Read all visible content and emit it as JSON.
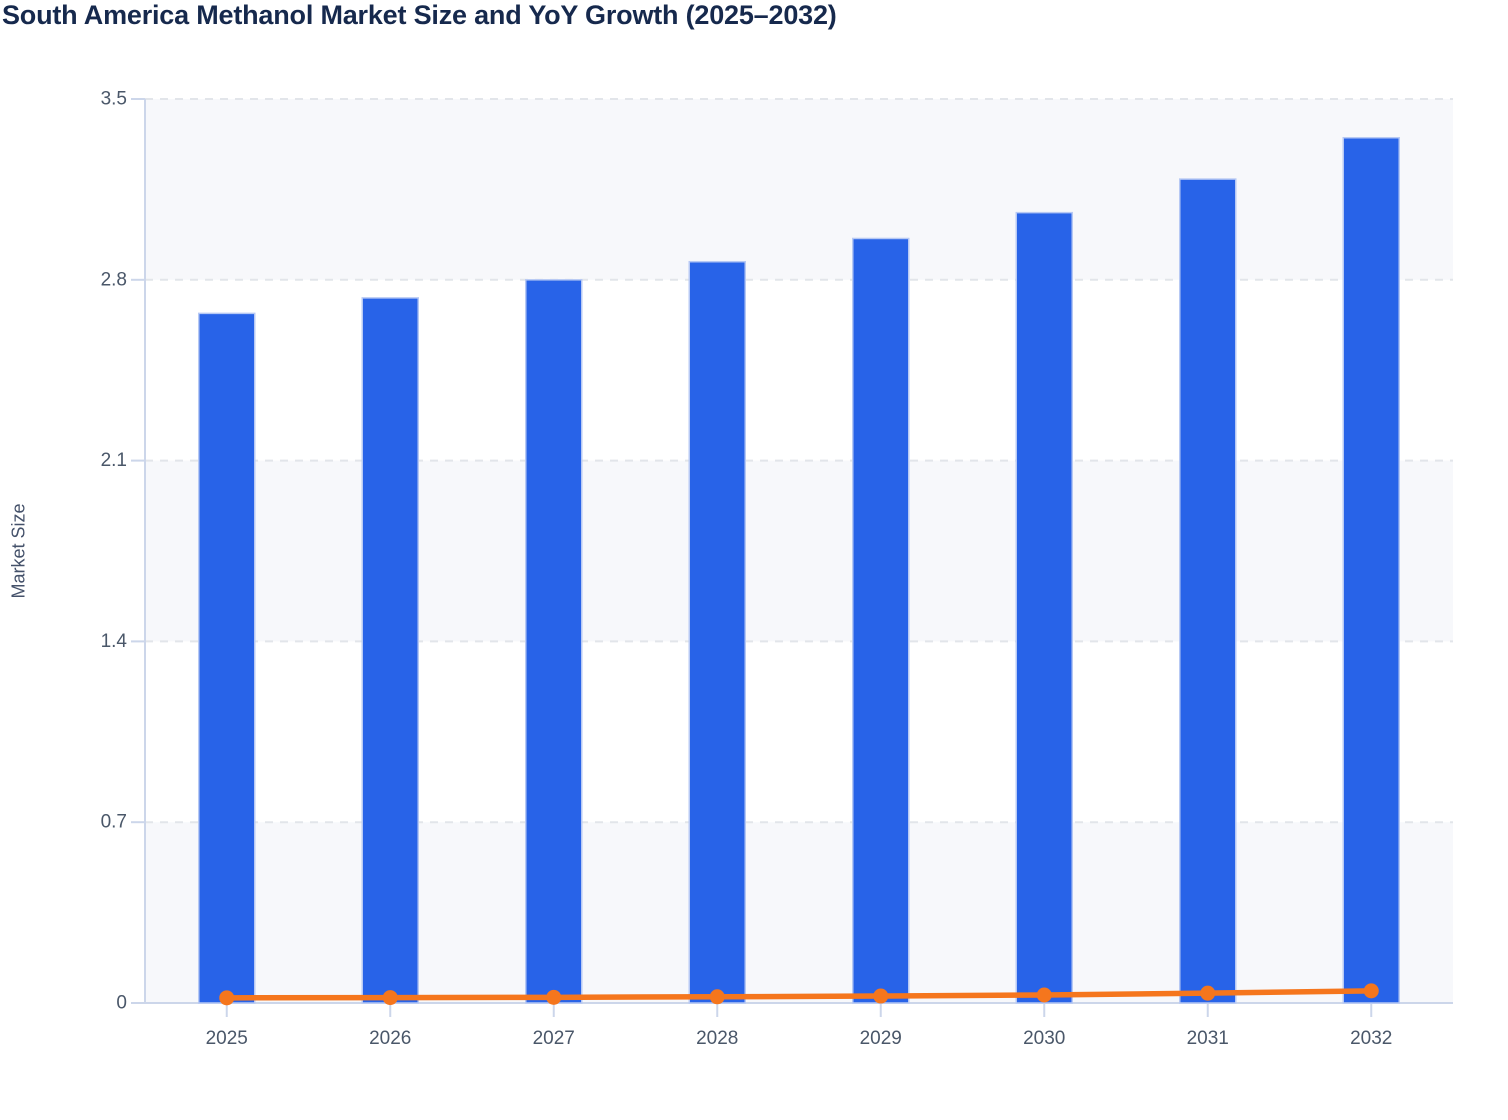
{
  "chart_data": {
    "type": "bar",
    "title": "South America Methanol Market Size and YoY Growth (2025–2032)",
    "categories": [
      "2025",
      "2026",
      "2027",
      "2028",
      "2029",
      "2030",
      "2031",
      "2032"
    ],
    "series": [
      {
        "name": "Market Size",
        "render": "bar",
        "values": [
          2.67,
          2.73,
          2.8,
          2.87,
          2.96,
          3.06,
          3.19,
          3.35
        ]
      },
      {
        "name": "YoY Growth",
        "render": "line",
        "values": [
          0.02,
          0.021,
          0.022,
          0.024,
          0.027,
          0.031,
          0.038,
          0.047
        ]
      }
    ],
    "xlabel": "",
    "ylabel": "Market Size",
    "ylim": [
      0,
      3.5
    ],
    "y_ticks": [
      0,
      0.7,
      1.4,
      2.1,
      2.8,
      3.5
    ],
    "y_tick_labels": [
      "0",
      "0.7",
      "1.4",
      "2.1",
      "2.8",
      "3.5"
    ],
    "grid": "horizontal-dashed-with-alternating-bands",
    "legend_position": "none"
  },
  "colors": {
    "bar_fill": "#2863e8",
    "bar_border": "#b7c9f4",
    "line_stroke": "#f5761d",
    "title_text": "#16294d",
    "axis_line": "#ccd6ea",
    "grid_line": "#e2e5ea",
    "band_fill": "#f7f8fb",
    "tick_label": "#4a5769",
    "axis_title": "#44516a",
    "background": "#ffffff"
  }
}
